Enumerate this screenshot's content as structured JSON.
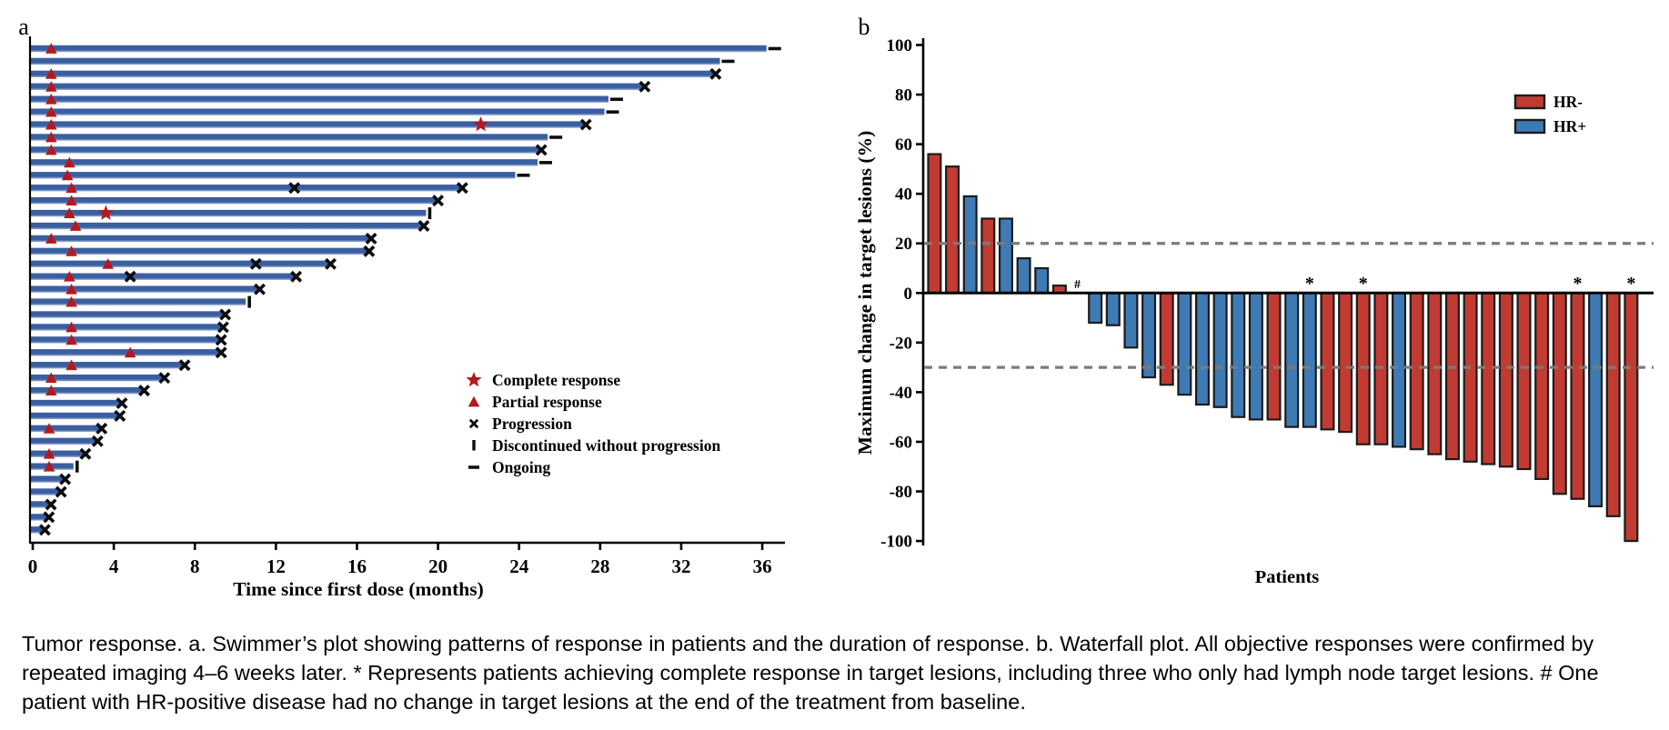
{
  "caption": {
    "text": "Tumor response. a. Swimmer’s plot showing patterns of response in patients and the duration of response. b. Waterfall plot. All objective responses were confirmed by repeated imaging 4–6 weeks later. * Represents patients achieving complete response in target lesions, including three who only had lymph node target lesions. # One patient with HR-positive disease had no change in target lesions at the end of the treatment from baseline."
  },
  "colors": {
    "swimmer_bar": "#3A5FA0",
    "swimmer_bar_light": "#9FB3D6",
    "response_red": "#B5191E",
    "hr_neg": "#C23B32",
    "hr_pos": "#3E7BB5",
    "bar_outline": "#1B1B1B",
    "dashed_line": "#7B7B7B",
    "axis": "#000000"
  },
  "chart_data": [
    {
      "type": "swimmer",
      "panel_label": "a",
      "xlabel": "Time since first dose (months)",
      "x_ticks": [
        0,
        4,
        8,
        12,
        16,
        20,
        24,
        28,
        32,
        36
      ],
      "xlim": [
        0,
        37.2
      ],
      "legend": [
        {
          "marker": "star",
          "label": "Complete response"
        },
        {
          "marker": "triangle",
          "label": "Partial response"
        },
        {
          "marker": "x",
          "label": "Progression"
        },
        {
          "marker": "vbar",
          "label": "Discontinued without progression"
        },
        {
          "marker": "dash",
          "label": "Ongoing"
        }
      ],
      "end_types": {
        "ongoing": "Ongoing",
        "progression": "Progression",
        "discontinued": "Discontinued without progression"
      },
      "patients": [
        {
          "duration": 36.3,
          "end": "ongoing",
          "markers": [
            {
              "type": "pr",
              "t": 1.0
            }
          ]
        },
        {
          "duration": 34.0,
          "end": "ongoing",
          "markers": []
        },
        {
          "duration": 33.7,
          "end": "progression",
          "markers": [
            {
              "type": "pr",
              "t": 1.0
            }
          ]
        },
        {
          "duration": 30.2,
          "end": "progression",
          "markers": [
            {
              "type": "pr",
              "t": 1.0
            }
          ]
        },
        {
          "duration": 28.5,
          "end": "ongoing",
          "markers": [
            {
              "type": "pr",
              "t": 1.0
            }
          ]
        },
        {
          "duration": 28.3,
          "end": "ongoing",
          "markers": [
            {
              "type": "pr",
              "t": 1.0
            }
          ]
        },
        {
          "duration": 27.3,
          "end": "progression",
          "markers": [
            {
              "type": "pr",
              "t": 1.0
            },
            {
              "type": "cr",
              "t": 22.2
            }
          ]
        },
        {
          "duration": 25.5,
          "end": "ongoing",
          "markers": [
            {
              "type": "pr",
              "t": 1.0
            }
          ]
        },
        {
          "duration": 25.1,
          "end": "progression",
          "markers": [
            {
              "type": "pr",
              "t": 1.0
            }
          ]
        },
        {
          "duration": 25.0,
          "end": "ongoing",
          "markers": [
            {
              "type": "pr",
              "t": 1.9
            }
          ]
        },
        {
          "duration": 23.9,
          "end": "ongoing",
          "markers": [
            {
              "type": "pr",
              "t": 1.8
            }
          ]
        },
        {
          "duration": 21.2,
          "end": "progression",
          "markers": [
            {
              "type": "pr",
              "t": 2.0
            },
            {
              "type": "prog",
              "t": 13.0
            }
          ]
        },
        {
          "duration": 20.0,
          "end": "progression",
          "markers": [
            {
              "type": "pr",
              "t": 2.0
            }
          ]
        },
        {
          "duration": 19.5,
          "end": "discontinued",
          "markers": [
            {
              "type": "pr",
              "t": 1.9
            },
            {
              "type": "cr",
              "t": 3.7
            }
          ]
        },
        {
          "duration": 19.3,
          "end": "progression",
          "markers": [
            {
              "type": "pr",
              "t": 2.2
            }
          ]
        },
        {
          "duration": 16.7,
          "end": "progression",
          "markers": [
            {
              "type": "pr",
              "t": 1.0
            }
          ]
        },
        {
          "duration": 16.6,
          "end": "progression",
          "markers": [
            {
              "type": "pr",
              "t": 2.0
            }
          ]
        },
        {
          "duration": 14.7,
          "end": "progression",
          "markers": [
            {
              "type": "pr",
              "t": 3.8
            },
            {
              "type": "prog",
              "t": 11.1
            }
          ]
        },
        {
          "duration": 13.0,
          "end": "progression",
          "markers": [
            {
              "type": "pr",
              "t": 1.9
            },
            {
              "type": "prog",
              "t": 4.9
            }
          ]
        },
        {
          "duration": 11.2,
          "end": "progression",
          "markers": [
            {
              "type": "pr",
              "t": 2.0
            }
          ]
        },
        {
          "duration": 10.6,
          "end": "discontinued",
          "markers": [
            {
              "type": "pr",
              "t": 2.0
            }
          ]
        },
        {
          "duration": 9.5,
          "end": "progression",
          "markers": []
        },
        {
          "duration": 9.4,
          "end": "progression",
          "markers": [
            {
              "type": "pr",
              "t": 2.0
            }
          ]
        },
        {
          "duration": 9.3,
          "end": "progression",
          "markers": [
            {
              "type": "pr",
              "t": 2.0
            }
          ]
        },
        {
          "duration": 9.3,
          "end": "progression",
          "markers": [
            {
              "type": "pr",
              "t": 4.9
            }
          ]
        },
        {
          "duration": 7.5,
          "end": "progression",
          "markers": [
            {
              "type": "pr",
              "t": 2.0
            }
          ]
        },
        {
          "duration": 6.5,
          "end": "progression",
          "markers": [
            {
              "type": "pr",
              "t": 1.0
            }
          ]
        },
        {
          "duration": 5.5,
          "end": "progression",
          "markers": [
            {
              "type": "pr",
              "t": 1.0
            }
          ]
        },
        {
          "duration": 4.4,
          "end": "progression",
          "markers": []
        },
        {
          "duration": 4.3,
          "end": "progression",
          "markers": []
        },
        {
          "duration": 3.4,
          "end": "progression",
          "markers": [
            {
              "type": "pr",
              "t": 0.9
            }
          ]
        },
        {
          "duration": 3.2,
          "end": "progression",
          "markers": []
        },
        {
          "duration": 2.6,
          "end": "progression",
          "markers": [
            {
              "type": "pr",
              "t": 0.9
            }
          ]
        },
        {
          "duration": 2.1,
          "end": "discontinued",
          "markers": [
            {
              "type": "pr",
              "t": 0.9
            }
          ]
        },
        {
          "duration": 1.6,
          "end": "progression",
          "markers": []
        },
        {
          "duration": 1.4,
          "end": "progression",
          "markers": []
        },
        {
          "duration": 0.9,
          "end": "progression",
          "markers": []
        },
        {
          "duration": 0.8,
          "end": "progression",
          "markers": []
        },
        {
          "duration": 0.6,
          "end": "progression",
          "markers": []
        }
      ]
    },
    {
      "type": "bar",
      "panel_label": "b",
      "title": "Waterfall plot",
      "xlabel": "Patients",
      "ylabel": "Maximum change in target lesions (%)",
      "ylim": [
        -100,
        100
      ],
      "y_ticks": [
        100,
        80,
        60,
        40,
        20,
        0,
        -20,
        -40,
        -60,
        -80,
        -100
      ],
      "reference_lines": [
        20,
        -30
      ],
      "legend": [
        {
          "label": "HR-",
          "group": "neg"
        },
        {
          "label": "HR+",
          "group": "pos"
        }
      ],
      "patients": [
        {
          "value": 56,
          "group": "neg"
        },
        {
          "value": 51,
          "group": "neg"
        },
        {
          "value": 39,
          "group": "pos"
        },
        {
          "value": 30,
          "group": "neg"
        },
        {
          "value": 30,
          "group": "pos"
        },
        {
          "value": 14,
          "group": "pos"
        },
        {
          "value": 10,
          "group": "pos"
        },
        {
          "value": 3,
          "group": "neg"
        },
        {
          "value": 0,
          "group": "pos",
          "annotation": "#"
        },
        {
          "value": -12,
          "group": "pos"
        },
        {
          "value": -13,
          "group": "pos"
        },
        {
          "value": -22,
          "group": "pos"
        },
        {
          "value": -34,
          "group": "pos"
        },
        {
          "value": -37,
          "group": "neg"
        },
        {
          "value": -41,
          "group": "pos"
        },
        {
          "value": -45,
          "group": "pos"
        },
        {
          "value": -46,
          "group": "pos"
        },
        {
          "value": -50,
          "group": "pos"
        },
        {
          "value": -51,
          "group": "pos"
        },
        {
          "value": -51,
          "group": "neg"
        },
        {
          "value": -54,
          "group": "pos"
        },
        {
          "value": -54,
          "group": "pos",
          "annotation": "*"
        },
        {
          "value": -55,
          "group": "neg"
        },
        {
          "value": -56,
          "group": "neg"
        },
        {
          "value": -61,
          "group": "neg",
          "annotation": "*"
        },
        {
          "value": -61,
          "group": "neg"
        },
        {
          "value": -62,
          "group": "pos"
        },
        {
          "value": -63,
          "group": "neg"
        },
        {
          "value": -65,
          "group": "neg"
        },
        {
          "value": -67,
          "group": "neg"
        },
        {
          "value": -68,
          "group": "neg"
        },
        {
          "value": -69,
          "group": "neg"
        },
        {
          "value": -70,
          "group": "neg"
        },
        {
          "value": -71,
          "group": "neg"
        },
        {
          "value": -75,
          "group": "neg"
        },
        {
          "value": -81,
          "group": "neg"
        },
        {
          "value": -83,
          "group": "neg",
          "annotation": "*"
        },
        {
          "value": -86,
          "group": "pos"
        },
        {
          "value": -90,
          "group": "neg"
        },
        {
          "value": -100,
          "group": "neg",
          "annotation": "*"
        }
      ]
    }
  ]
}
